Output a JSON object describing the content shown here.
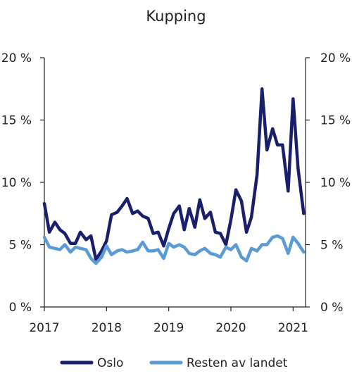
{
  "chart_data": {
    "type": "line",
    "title": "Kupping",
    "xlabel": "",
    "ylabel": "",
    "ylim": [
      0,
      20
    ],
    "y_unit_suffix": " %",
    "y_ticks": [
      0,
      5,
      10,
      15,
      20
    ],
    "y_tick_labels": [
      "0 %",
      "5 %",
      "10 %",
      "15 %",
      "20 %"
    ],
    "x_ticks": [
      "2017",
      "2018",
      "2019",
      "2020",
      "2021"
    ],
    "x_start_year": 2017,
    "x_end_year": 2021.2,
    "grid": false,
    "legend_position": "bottom",
    "series": [
      {
        "name": "Oslo",
        "color": "#1a1f6b",
        "values": [
          [
            2017.0,
            8.3
          ],
          [
            2017.08,
            6.0
          ],
          [
            2017.17,
            6.8
          ],
          [
            2017.25,
            6.2
          ],
          [
            2017.33,
            5.9
          ],
          [
            2017.42,
            5.1
          ],
          [
            2017.5,
            5.1
          ],
          [
            2017.58,
            6.0
          ],
          [
            2017.67,
            5.4
          ],
          [
            2017.75,
            5.7
          ],
          [
            2017.83,
            3.8
          ],
          [
            2017.92,
            4.5
          ],
          [
            2018.0,
            5.3
          ],
          [
            2018.08,
            7.4
          ],
          [
            2018.17,
            7.6
          ],
          [
            2018.25,
            8.1
          ],
          [
            2018.33,
            8.7
          ],
          [
            2018.42,
            7.5
          ],
          [
            2018.5,
            7.7
          ],
          [
            2018.58,
            7.3
          ],
          [
            2018.67,
            7.1
          ],
          [
            2018.75,
            5.9
          ],
          [
            2018.83,
            6.0
          ],
          [
            2018.92,
            4.9
          ],
          [
            2019.0,
            6.3
          ],
          [
            2019.08,
            7.5
          ],
          [
            2019.17,
            8.1
          ],
          [
            2019.25,
            6.2
          ],
          [
            2019.33,
            7.9
          ],
          [
            2019.42,
            6.4
          ],
          [
            2019.5,
            8.6
          ],
          [
            2019.58,
            7.1
          ],
          [
            2019.67,
            7.6
          ],
          [
            2019.75,
            6.0
          ],
          [
            2019.83,
            5.9
          ],
          [
            2019.92,
            5.0
          ],
          [
            2020.0,
            7.0
          ],
          [
            2020.08,
            9.4
          ],
          [
            2020.17,
            8.5
          ],
          [
            2020.25,
            6.0
          ],
          [
            2020.33,
            7.2
          ],
          [
            2020.42,
            10.6
          ],
          [
            2020.5,
            17.5
          ],
          [
            2020.58,
            12.6
          ],
          [
            2020.67,
            14.3
          ],
          [
            2020.75,
            13.0
          ],
          [
            2020.83,
            13.0
          ],
          [
            2020.92,
            9.3
          ],
          [
            2021.0,
            16.7
          ],
          [
            2021.08,
            11.1
          ],
          [
            2021.17,
            7.5
          ]
        ]
      },
      {
        "name": "Resten av landet",
        "color": "#5b9bd5",
        "values": [
          [
            2017.0,
            5.6
          ],
          [
            2017.08,
            4.8
          ],
          [
            2017.17,
            4.7
          ],
          [
            2017.25,
            4.6
          ],
          [
            2017.33,
            5.0
          ],
          [
            2017.42,
            4.4
          ],
          [
            2017.5,
            4.8
          ],
          [
            2017.58,
            4.7
          ],
          [
            2017.67,
            4.6
          ],
          [
            2017.75,
            3.9
          ],
          [
            2017.83,
            3.5
          ],
          [
            2017.92,
            4.0
          ],
          [
            2018.0,
            4.9
          ],
          [
            2018.08,
            4.2
          ],
          [
            2018.17,
            4.5
          ],
          [
            2018.25,
            4.6
          ],
          [
            2018.33,
            4.4
          ],
          [
            2018.42,
            4.5
          ],
          [
            2018.5,
            4.6
          ],
          [
            2018.58,
            5.2
          ],
          [
            2018.67,
            4.5
          ],
          [
            2018.75,
            4.5
          ],
          [
            2018.83,
            4.6
          ],
          [
            2018.92,
            3.9
          ],
          [
            2019.0,
            5.1
          ],
          [
            2019.08,
            4.8
          ],
          [
            2019.17,
            5.0
          ],
          [
            2019.25,
            4.8
          ],
          [
            2019.33,
            4.3
          ],
          [
            2019.42,
            4.2
          ],
          [
            2019.5,
            4.5
          ],
          [
            2019.58,
            4.7
          ],
          [
            2019.67,
            4.3
          ],
          [
            2019.75,
            4.2
          ],
          [
            2019.83,
            4.0
          ],
          [
            2019.92,
            4.8
          ],
          [
            2020.0,
            4.6
          ],
          [
            2020.08,
            5.0
          ],
          [
            2020.17,
            4.0
          ],
          [
            2020.25,
            3.7
          ],
          [
            2020.33,
            4.7
          ],
          [
            2020.42,
            4.5
          ],
          [
            2020.5,
            5.0
          ],
          [
            2020.58,
            5.0
          ],
          [
            2020.67,
            5.6
          ],
          [
            2020.75,
            5.7
          ],
          [
            2020.83,
            5.5
          ],
          [
            2020.92,
            4.3
          ],
          [
            2021.0,
            5.6
          ],
          [
            2021.08,
            5.1
          ],
          [
            2021.17,
            4.4
          ]
        ]
      }
    ]
  }
}
